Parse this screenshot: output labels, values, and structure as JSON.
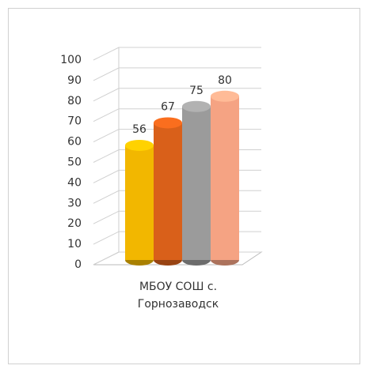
{
  "chart_data": {
    "type": "bar3d",
    "categories": [
      "МБОУ СОШ с. Горнозаводск"
    ],
    "series": [
      {
        "color": "#f2b700",
        "values": [
          56
        ]
      },
      {
        "color": "#d9601a",
        "values": [
          67
        ]
      },
      {
        "color": "#9b9b9b",
        "values": [
          75
        ]
      },
      {
        "color": "#f5a383",
        "values": [
          80
        ]
      }
    ],
    "ylim": [
      0,
      100
    ],
    "yticks": [
      0,
      10,
      20,
      30,
      40,
      50,
      60,
      70,
      80,
      90,
      100
    ],
    "grid": true
  }
}
